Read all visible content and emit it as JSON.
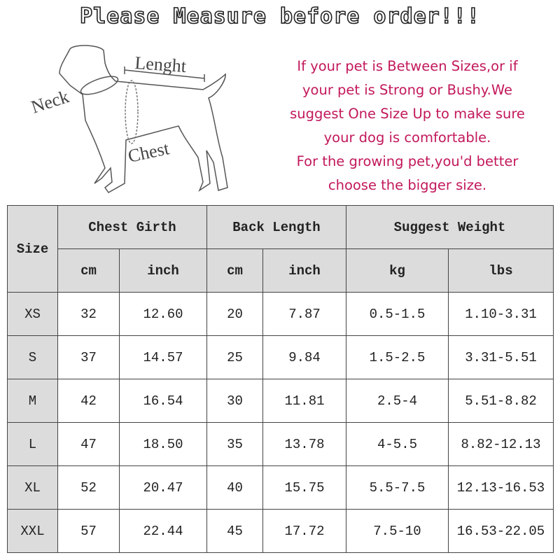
{
  "title": "Please Measure before order!!!",
  "diagram": {
    "labels": {
      "length": "Lenght",
      "neck": "Neck",
      "chest": "Chest"
    }
  },
  "notes": [
    "If your pet is Between Sizes,or if",
    "your pet is Strong or Bushy.We",
    "suggest One Size Up to make sure",
    "your dog is comfortable.",
    "For the growing pet,you'd better",
    "choose the bigger size."
  ],
  "colors": {
    "note_text": "#c2185b",
    "header_bg": "#dcdcdc"
  },
  "table": {
    "size_header": "Size",
    "groups": [
      "Chest Girth",
      "Back Length",
      "Suggest Weight"
    ],
    "units": [
      "cm",
      "inch",
      "cm",
      "inch",
      "kg",
      "lbs"
    ],
    "rows": [
      [
        "XS",
        "32",
        "12.60",
        "20",
        "7.87",
        "0.5-1.5",
        "1.10-3.31"
      ],
      [
        "S",
        "37",
        "14.57",
        "25",
        "9.84",
        "1.5-2.5",
        "3.31-5.51"
      ],
      [
        "M",
        "42",
        "16.54",
        "30",
        "11.81",
        "2.5-4",
        "5.51-8.82"
      ],
      [
        "L",
        "47",
        "18.50",
        "35",
        "13.78",
        "4-5.5",
        "8.82-12.13"
      ],
      [
        "XL",
        "52",
        "20.47",
        "40",
        "15.75",
        "5.5-7.5",
        "12.13-16.53"
      ],
      [
        "XXL",
        "57",
        "22.44",
        "45",
        "17.72",
        "7.5-10",
        "16.53-22.05"
      ]
    ]
  }
}
